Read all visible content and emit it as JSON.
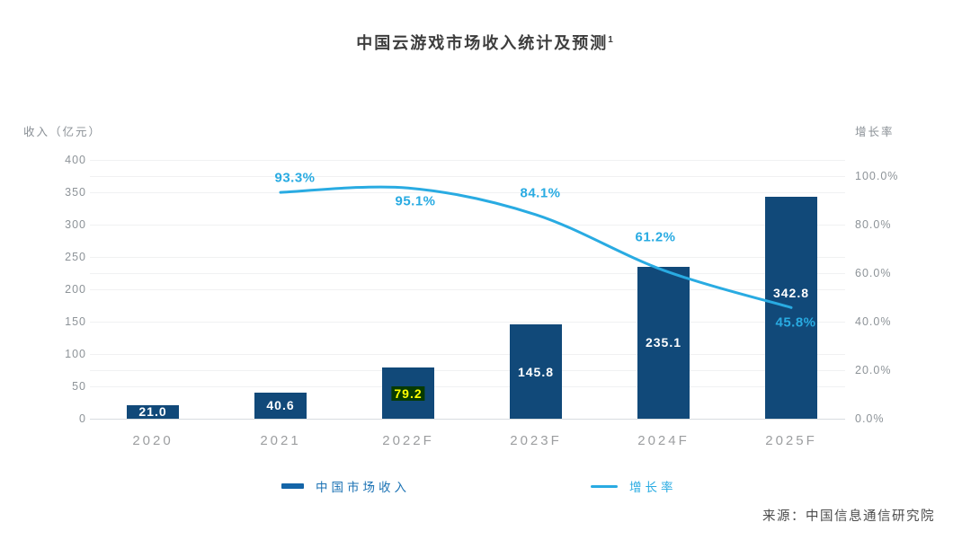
{
  "title": {
    "text": "中国云游戏市场收入统计及预测",
    "superscript": "1"
  },
  "source": "来源：中国信息通信研究院",
  "chart_data": {
    "type": "bar",
    "title": "中国云游戏市场收入统计及预测",
    "categories": [
      "2020",
      "2021",
      "2022F",
      "2023F",
      "2024F",
      "2025F"
    ],
    "series": [
      {
        "name": "中国市场收入",
        "type": "bar",
        "axis": "left",
        "values": [
          21.0,
          40.6,
          79.2,
          145.8,
          235.1,
          342.8
        ],
        "value_labels": [
          "21.0",
          "40.6",
          "79.2",
          "145.8",
          "235.1",
          "342.8"
        ],
        "color": "#114979"
      },
      {
        "name": "增长率",
        "type": "line",
        "axis": "right",
        "categories": [
          "2021",
          "2022F",
          "2023F",
          "2024F",
          "2025F"
        ],
        "values": [
          93.3,
          95.1,
          84.1,
          61.2,
          45.8
        ],
        "value_labels": [
          "93.3%",
          "95.1%",
          "84.1%",
          "61.2%",
          "45.8%"
        ],
        "label_positions": [
          "above",
          "below",
          "above",
          "above",
          "inside-bar"
        ],
        "color": "#29abe2"
      }
    ],
    "left_axis": {
      "title": "收入（亿元）",
      "range": [
        0,
        400
      ],
      "tick_values": [
        0,
        50,
        100,
        150,
        200,
        250,
        300,
        350,
        400
      ],
      "tick_labels": [
        "0",
        "50",
        "100",
        "150",
        "200",
        "250",
        "300",
        "350",
        "400"
      ]
    },
    "right_axis": {
      "title": "增长率",
      "range": [
        0,
        100
      ],
      "tick_values": [
        0,
        20,
        40,
        60,
        80,
        100
      ],
      "tick_labels": [
        "0.0%",
        "20.0%",
        "40.0%",
        "60.0%",
        "80.0%",
        "100.0%"
      ]
    },
    "legend": {
      "position": "bottom",
      "items": [
        {
          "label": "中国市场收入",
          "swatch": "bar",
          "swatch_color": "#1465a8",
          "label_color": "#1b72b4"
        },
        {
          "label": "增长率",
          "swatch": "line",
          "swatch_color": "#29abe2",
          "label_color": "#29abe2"
        }
      ]
    },
    "highlight_label": {
      "category": "2022F",
      "value": "79.2",
      "text_color": "#ffff00",
      "background_color": "#063a02"
    },
    "grid": true
  }
}
